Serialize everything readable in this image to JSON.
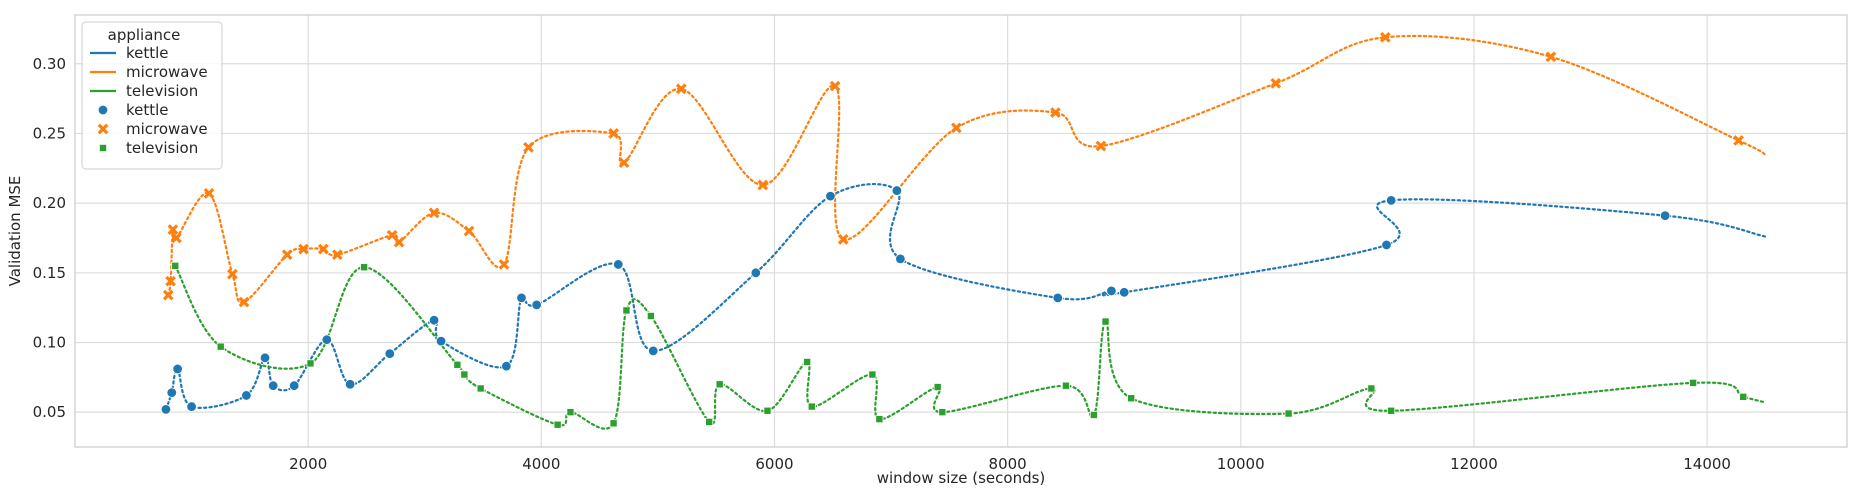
{
  "chart_data": {
    "type": "line",
    "xlabel": "window size (seconds)",
    "ylabel": "Validation MSE",
    "xlim": [
      0,
      15200
    ],
    "ylim": [
      0.025,
      0.335
    ],
    "x_ticks": [
      2000,
      4000,
      6000,
      8000,
      10000,
      12000,
      14000
    ],
    "x_tick_labels": [
      "2000",
      "4000",
      "6000",
      "8000",
      "10000",
      "12000",
      "14000"
    ],
    "y_ticks": [
      0.05,
      0.1,
      0.15,
      0.2,
      0.25,
      0.3
    ],
    "y_tick_labels": [
      "0.05",
      "0.10",
      "0.15",
      "0.20",
      "0.25",
      "0.30"
    ],
    "grid": true,
    "legend": {
      "title": "appliance",
      "placement": "top-left",
      "line_entries": [
        "kettle",
        "microwave",
        "television"
      ],
      "marker_entries": [
        "kettle",
        "microwave",
        "television"
      ]
    },
    "series": [
      {
        "name": "kettle",
        "color": "#1f77b4",
        "marker": "circle",
        "x": [
          780,
          830,
          880,
          1000,
          1470,
          1630,
          1700,
          1880,
          2160,
          2360,
          2700,
          3080,
          3140,
          3700,
          3830,
          3960,
          4660,
          4960,
          5840,
          6480,
          7050,
          7080,
          8430,
          8890,
          9000,
          11250,
          11290,
          13640
        ],
        "y": [
          0.052,
          0.064,
          0.081,
          0.054,
          0.062,
          0.089,
          0.069,
          0.069,
          0.102,
          0.07,
          0.092,
          0.116,
          0.101,
          0.083,
          0.132,
          0.127,
          0.156,
          0.094,
          0.15,
          0.205,
          0.209,
          0.16,
          0.132,
          0.137,
          0.136,
          0.17,
          0.202,
          0.191
        ],
        "line_x": [
          780,
          830,
          880,
          1000,
          1470,
          1630,
          1700,
          1880,
          2160,
          2360,
          2700,
          3080,
          3140,
          3700,
          3830,
          3960,
          4660,
          4960,
          5840,
          6480,
          7050,
          7080,
          8430,
          8890,
          9000,
          11250,
          11290,
          13640,
          14500
        ],
        "line_y": [
          0.052,
          0.064,
          0.081,
          0.054,
          0.062,
          0.089,
          0.069,
          0.069,
          0.102,
          0.07,
          0.092,
          0.116,
          0.101,
          0.083,
          0.132,
          0.127,
          0.156,
          0.094,
          0.15,
          0.205,
          0.209,
          0.16,
          0.132,
          0.137,
          0.136,
          0.17,
          0.202,
          0.191,
          0.176
        ]
      },
      {
        "name": "microwave",
        "color": "#ff7f0e",
        "marker": "x",
        "x": [
          800,
          820,
          840,
          870,
          1150,
          1350,
          1450,
          1820,
          1960,
          2130,
          2250,
          2720,
          2780,
          3080,
          3380,
          3680,
          3890,
          4620,
          4710,
          5200,
          5900,
          6520,
          6590,
          7560,
          8410,
          8800,
          10300,
          11240,
          12660,
          14270
        ],
        "y": [
          0.134,
          0.144,
          0.181,
          0.175,
          0.207,
          0.149,
          0.129,
          0.163,
          0.167,
          0.167,
          0.163,
          0.177,
          0.172,
          0.193,
          0.18,
          0.156,
          0.24,
          0.25,
          0.229,
          0.282,
          0.213,
          0.284,
          0.174,
          0.254,
          0.265,
          0.241,
          0.286,
          0.319,
          0.305,
          0.245
        ],
        "line_x": [
          800,
          820,
          840,
          870,
          1150,
          1350,
          1450,
          1820,
          1960,
          2130,
          2250,
          2720,
          2780,
          3080,
          3380,
          3680,
          3890,
          4620,
          4710,
          5200,
          5900,
          6520,
          6590,
          7560,
          8410,
          8800,
          10300,
          11240,
          12660,
          14270,
          14500
        ],
        "line_y": [
          0.134,
          0.144,
          0.181,
          0.175,
          0.207,
          0.149,
          0.129,
          0.163,
          0.167,
          0.167,
          0.163,
          0.177,
          0.172,
          0.193,
          0.18,
          0.156,
          0.24,
          0.25,
          0.229,
          0.282,
          0.213,
          0.284,
          0.174,
          0.254,
          0.265,
          0.241,
          0.286,
          0.319,
          0.305,
          0.245,
          0.234
        ]
      },
      {
        "name": "television",
        "color": "#2ca02c",
        "marker": "square",
        "x": [
          860,
          1250,
          2020,
          2480,
          3280,
          3340,
          3480,
          4140,
          4250,
          4620,
          4730,
          4940,
          5440,
          5530,
          5940,
          6280,
          6320,
          6840,
          6900,
          7400,
          7440,
          8500,
          8740,
          8840,
          9060,
          10410,
          11120,
          11290,
          13880,
          14310
        ],
        "y": [
          0.155,
          0.097,
          0.085,
          0.154,
          0.084,
          0.077,
          0.067,
          0.041,
          0.05,
          0.042,
          0.123,
          0.119,
          0.043,
          0.07,
          0.051,
          0.086,
          0.054,
          0.077,
          0.045,
          0.068,
          0.05,
          0.069,
          0.048,
          0.115,
          0.06,
          0.049,
          0.067,
          0.051,
          0.071,
          0.061
        ],
        "line_x": [
          860,
          1250,
          2020,
          2480,
          3280,
          3340,
          3480,
          4140,
          4250,
          4620,
          4730,
          4940,
          5440,
          5530,
          5940,
          6280,
          6320,
          6840,
          6900,
          7400,
          7440,
          8500,
          8740,
          8840,
          9060,
          10410,
          11120,
          11290,
          13880,
          14310,
          14500
        ],
        "line_y": [
          0.155,
          0.097,
          0.085,
          0.154,
          0.084,
          0.077,
          0.067,
          0.041,
          0.05,
          0.042,
          0.123,
          0.119,
          0.043,
          0.07,
          0.051,
          0.086,
          0.054,
          0.077,
          0.045,
          0.068,
          0.05,
          0.069,
          0.048,
          0.115,
          0.06,
          0.049,
          0.067,
          0.051,
          0.071,
          0.061,
          0.057
        ]
      }
    ]
  }
}
